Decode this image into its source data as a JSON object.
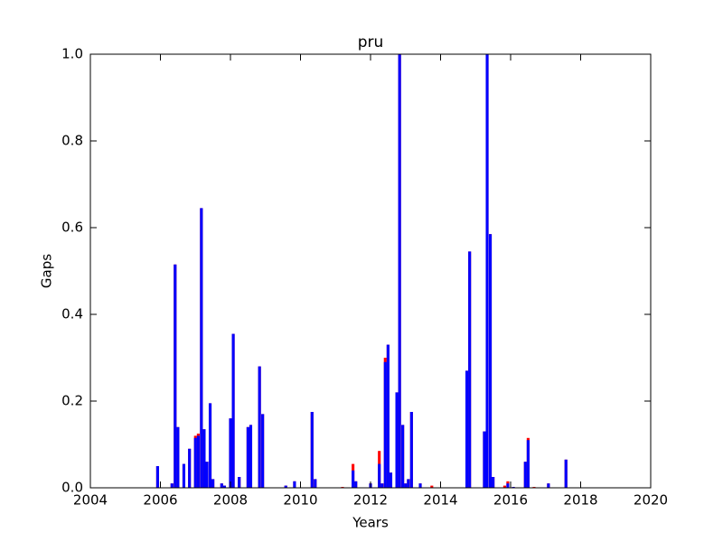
{
  "chart_data": {
    "type": "bar",
    "title": "pru",
    "x_label": "Years",
    "y_label": "Gaps",
    "x": [
      2005.92,
      2006.33,
      2006.42,
      2006.5,
      2006.67,
      2006.83,
      2007.0,
      2007.08,
      2007.17,
      2007.25,
      2007.33,
      2007.42,
      2007.5,
      2007.75,
      2007.83,
      2008.0,
      2008.08,
      2008.25,
      2008.5,
      2008.58,
      2008.83,
      2008.92,
      2009.58,
      2009.83,
      2010.33,
      2010.42,
      2011.2,
      2011.5,
      2011.58,
      2012.0,
      2012.25,
      2012.33,
      2012.42,
      2012.5,
      2012.58,
      2012.75,
      2012.83,
      2012.92,
      2013.0,
      2013.08,
      2013.17,
      2013.42,
      2013.75,
      2014.75,
      2014.83,
      2015.25,
      2015.33,
      2015.42,
      2015.5,
      2015.83,
      2015.92,
      2016.08,
      2016.42,
      2016.5,
      2016.67,
      2017.08,
      2017.58
    ],
    "series": [
      {
        "color": "#ff0000",
        "values": [
          0.05,
          0.01,
          0.515,
          0.14,
          0.055,
          0.09,
          0.12,
          0.125,
          0.645,
          0.135,
          0.06,
          0.195,
          0.02,
          0.01,
          0.005,
          0.16,
          0.355,
          0.025,
          0.14,
          0.145,
          0.28,
          0.17,
          0.005,
          0.015,
          0.175,
          0.02,
          0.002,
          0.055,
          0.015,
          0.01,
          0.085,
          0.01,
          0.3,
          0.33,
          0.035,
          0.22,
          1.0,
          0.145,
          0.01,
          0.02,
          0.175,
          0.01,
          0.005,
          0.27,
          0.545,
          0.13,
          1.0,
          0.585,
          0.025,
          0.005,
          0.015,
          0.002,
          0.06,
          0.115,
          0.002,
          0.01,
          0.065
        ]
      },
      {
        "color": "#0000ff",
        "values": [
          0.05,
          0.01,
          0.515,
          0.14,
          0.055,
          0.09,
          0.115,
          0.12,
          0.645,
          0.135,
          0.06,
          0.195,
          0.02,
          0.01,
          0.005,
          0.16,
          0.355,
          0.025,
          0.14,
          0.145,
          0.28,
          0.17,
          0.005,
          0.015,
          0.175,
          0.02,
          0,
          0.04,
          0.015,
          0.01,
          0.055,
          0.01,
          0.29,
          0.33,
          0.035,
          0.22,
          1.0,
          0.145,
          0.01,
          0.02,
          0.175,
          0.01,
          0,
          0.27,
          0.545,
          0.13,
          1.0,
          0.585,
          0.025,
          0,
          0.01,
          0.002,
          0.06,
          0.11,
          0,
          0.01,
          0.065
        ]
      }
    ],
    "xlim": [
      2004,
      2020
    ],
    "xticks": [
      2004,
      2006,
      2008,
      2010,
      2012,
      2014,
      2016,
      2018,
      2020
    ],
    "ylim": [
      0,
      1
    ],
    "yticks": [
      {
        "value": 0,
        "label": "0.0"
      },
      0.2,
      0.4,
      0.6,
      0.8,
      {
        "value": 1,
        "label": "1.0"
      }
    ]
  }
}
